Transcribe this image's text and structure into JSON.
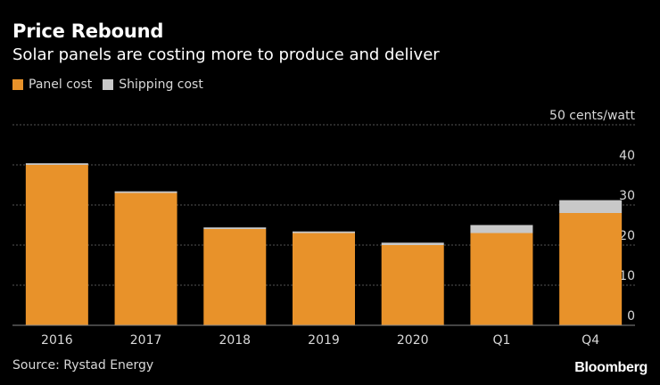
{
  "header": {
    "title": "Price Rebound",
    "subtitle": "Solar panels are costing more to produce and deliver"
  },
  "legend": [
    {
      "label": "Panel cost",
      "color": "#e8922a"
    },
    {
      "label": "Shipping cost",
      "color": "#c8c8c8"
    }
  ],
  "chart_data": {
    "type": "bar",
    "stacked": true,
    "title": "Price Rebound",
    "subtitle": "Solar panels are costing more to produce and deliver",
    "categories": [
      "2016",
      "2017",
      "2018",
      "2019",
      "2020",
      "Q1",
      "Q4"
    ],
    "series": [
      {
        "name": "Panel cost",
        "color": "#e8922a",
        "values": [
          40,
          33,
          24,
          23,
          20,
          23,
          28
        ]
      },
      {
        "name": "Shipping cost",
        "color": "#c8c8c8",
        "values": [
          0.4,
          0.4,
          0.4,
          0.4,
          0.6,
          2,
          3.2
        ]
      }
    ],
    "ylabel": "cents/watt",
    "ylim": [
      0,
      50
    ],
    "yticks": [
      "0",
      "10",
      "20",
      "30",
      "40",
      "50 cents/watt"
    ],
    "gridlines": true
  },
  "footer": {
    "source": "Source: Rystad Energy",
    "brand": "Bloomberg"
  }
}
